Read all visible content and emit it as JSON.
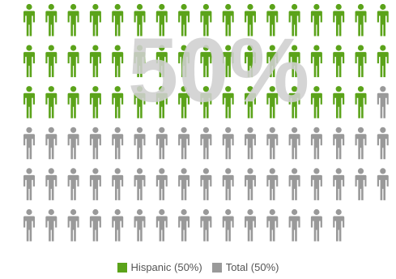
{
  "chart_data": {
    "type": "pictograph",
    "center_label": "50%",
    "icon": "person-icon",
    "rows": 6,
    "columns": 17,
    "icon_count": 100,
    "series": [
      {
        "name": "Hispanic",
        "legend_label": "Hispanic (50%)",
        "value": 50,
        "color": "#5ba31a"
      },
      {
        "name": "Total",
        "legend_label": "Total (50%)",
        "value": 50,
        "color": "#999999"
      }
    ],
    "overlay_label_color": "#cfcfcf"
  }
}
